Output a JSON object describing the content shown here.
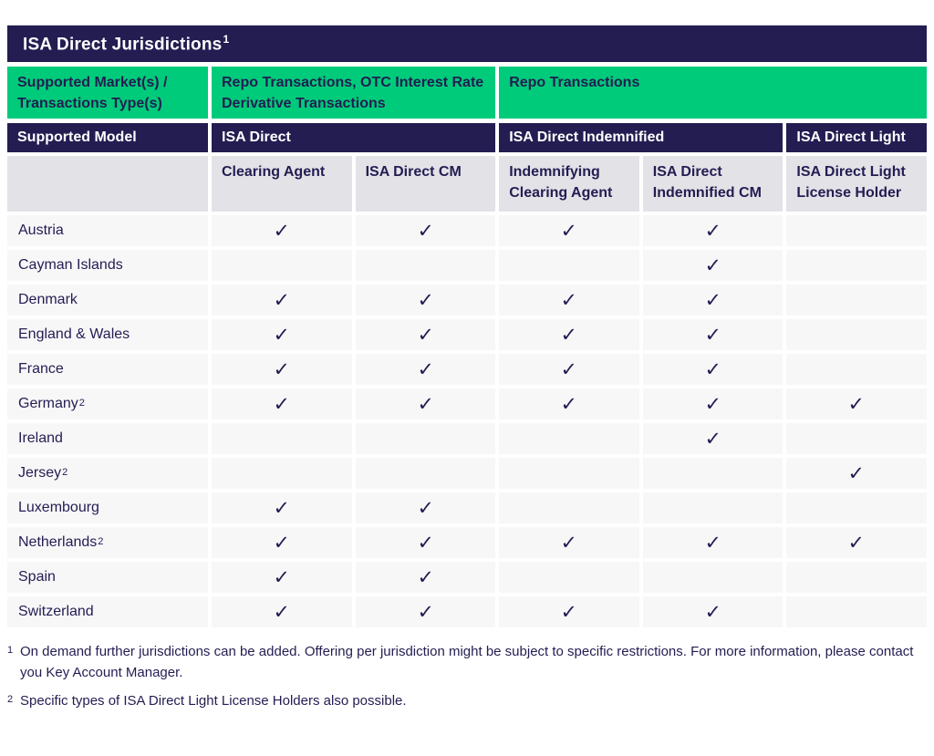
{
  "colors": {
    "navy": "#231d52",
    "green": "#00cb7a",
    "subheader_bg": "#e3e2e7",
    "row_bg": "#f7f7f8"
  },
  "title": {
    "text": "ISA Direct Jurisdictions",
    "superscript": "1"
  },
  "market_row": {
    "label": "Supported Market(s) / Transactions Type(s)",
    "groups": [
      {
        "label": "Repo Transactions, OTC Interest Rate Derivative Transactions"
      },
      {
        "label": "Repo Transactions"
      }
    ]
  },
  "model_row": {
    "label": "Supported Model",
    "models": [
      {
        "label": "ISA Direct"
      },
      {
        "label": "ISA Direct Indemnified"
      },
      {
        "label": "ISA Direct Light"
      }
    ]
  },
  "columns": [
    "Clearing Agent",
    "ISA Direct CM",
    "Indemnifying Clearing Agent",
    "ISA Direct Indemnified CM",
    "ISA Direct Light License Holder"
  ],
  "check_glyph": "✓",
  "rows": [
    {
      "jurisdiction": "Austria",
      "superscript": "",
      "checks": [
        true,
        true,
        true,
        true,
        false
      ]
    },
    {
      "jurisdiction": "Cayman Islands",
      "superscript": "",
      "checks": [
        false,
        false,
        false,
        true,
        false
      ]
    },
    {
      "jurisdiction": "Denmark",
      "superscript": "",
      "checks": [
        true,
        true,
        true,
        true,
        false
      ]
    },
    {
      "jurisdiction": "England & Wales",
      "superscript": "",
      "checks": [
        true,
        true,
        true,
        true,
        false
      ]
    },
    {
      "jurisdiction": "France",
      "superscript": "",
      "checks": [
        true,
        true,
        true,
        true,
        false
      ]
    },
    {
      "jurisdiction": "Germany",
      "superscript": "2",
      "checks": [
        true,
        true,
        true,
        true,
        true
      ]
    },
    {
      "jurisdiction": "Ireland",
      "superscript": "",
      "checks": [
        false,
        false,
        false,
        true,
        false
      ]
    },
    {
      "jurisdiction": "Jersey",
      "superscript": "2",
      "checks": [
        false,
        false,
        false,
        false,
        true
      ]
    },
    {
      "jurisdiction": "Luxembourg",
      "superscript": "",
      "checks": [
        true,
        true,
        false,
        false,
        false
      ]
    },
    {
      "jurisdiction": "Netherlands",
      "superscript": "2",
      "checks": [
        true,
        true,
        true,
        true,
        true
      ]
    },
    {
      "jurisdiction": "Spain",
      "superscript": "",
      "checks": [
        true,
        true,
        false,
        false,
        false
      ]
    },
    {
      "jurisdiction": "Switzerland",
      "superscript": "",
      "checks": [
        true,
        true,
        true,
        true,
        false
      ]
    }
  ],
  "footnotes": [
    {
      "marker": "1",
      "text": "On demand further jurisdictions can be added. Offering per jurisdiction might be subject to specific restrictions. For more information, please contact you Key Account Manager."
    },
    {
      "marker": "2",
      "text": "Specific types of ISA Direct Light License Holders also possible."
    }
  ]
}
